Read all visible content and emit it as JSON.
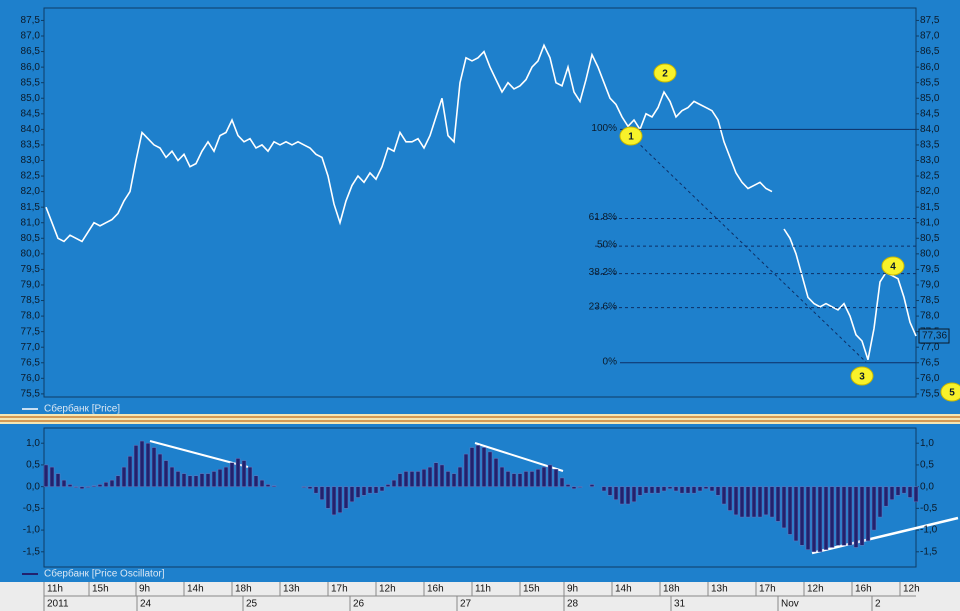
{
  "chart_data": [
    {
      "type": "line",
      "xlim": [
        0,
        436
      ],
      "x": [
        1,
        4,
        7,
        10,
        13,
        16,
        19,
        22,
        25,
        28,
        31,
        34,
        37,
        40,
        43,
        46,
        49,
        52,
        55,
        58,
        61,
        64,
        67,
        70,
        73,
        76,
        79,
        82,
        85,
        88,
        91,
        94,
        97,
        100,
        103,
        106,
        109,
        112,
        115,
        118,
        121,
        124,
        127,
        130,
        133,
        136,
        139,
        142,
        145,
        148,
        151,
        154,
        157,
        160,
        163,
        166,
        169,
        172,
        175,
        178,
        181,
        184,
        187,
        190,
        193,
        196,
        199,
        202,
        205,
        208,
        211,
        214,
        217,
        220,
        223,
        226,
        229,
        232,
        235,
        238,
        241,
        244,
        247,
        250,
        253,
        256,
        259,
        262,
        265,
        268,
        271,
        274,
        277,
        280,
        283,
        286,
        289,
        292,
        295,
        298,
        301,
        304,
        307,
        310,
        313,
        316,
        319,
        322,
        325,
        328,
        331,
        334,
        337,
        340,
        343,
        346,
        349,
        352,
        355,
        358,
        361,
        364,
        367,
        370,
        373,
        376,
        379,
        382,
        385,
        388,
        391,
        394,
        397,
        400,
        403,
        406,
        409,
        412,
        415,
        418,
        421,
        424,
        427,
        430,
        433,
        436
      ],
      "series": [
        {
          "name": "Сбербанк [Price]",
          "color": "#ffffff",
          "values": [
            81.5,
            81.0,
            80.5,
            80.4,
            80.6,
            80.5,
            80.4,
            80.7,
            81.0,
            80.9,
            81.0,
            81.1,
            81.3,
            81.7,
            82.0,
            83.0,
            83.9,
            83.7,
            83.5,
            83.4,
            83.1,
            83.3,
            83.0,
            83.2,
            82.8,
            82.9,
            83.3,
            83.6,
            83.3,
            83.8,
            83.9,
            84.3,
            83.8,
            83.6,
            83.7,
            83.4,
            83.5,
            83.3,
            83.6,
            83.5,
            83.6,
            83.5,
            83.6,
            83.5,
            83.4,
            83.2,
            83.1,
            82.5,
            81.6,
            81.0,
            81.7,
            82.2,
            82.5,
            82.3,
            82.6,
            82.4,
            82.8,
            83.4,
            83.3,
            83.9,
            83.6,
            83.6,
            83.7,
            83.4,
            83.8,
            84.4,
            85.0,
            83.8,
            83.6,
            85.5,
            86.3,
            86.2,
            86.3,
            86.5,
            86.0,
            85.6,
            85.2,
            85.5,
            85.3,
            85.4,
            85.6,
            86.0,
            86.2,
            86.7,
            86.3,
            85.5,
            85.4,
            86.0,
            85.2,
            84.9,
            85.6,
            86.4,
            86.0,
            85.5,
            85.0,
            84.8,
            84.4,
            84.1,
            84.3,
            84.0,
            84.5,
            84.4,
            84.7,
            85.2,
            84.9,
            84.4,
            84.6,
            84.7,
            84.9,
            84.8,
            84.7,
            84.6,
            84.3,
            83.6,
            83.1,
            82.6,
            82.3,
            82.1,
            82.2,
            82.3,
            82.1,
            82.0,
            null,
            80.8,
            80.5,
            80.0,
            79.3,
            78.6,
            78.4,
            78.3,
            78.4,
            78.3,
            78.2,
            78.4,
            78.0,
            77.4,
            77.2,
            76.6,
            77.6,
            79.1,
            79.4,
            79.3,
            79.2,
            78.6,
            77.8,
            77.36
          ]
        }
      ],
      "ylim": [
        75.4,
        87.9
      ],
      "yticks": [
        {
          "value": 75.5,
          "label": "75,5"
        },
        {
          "value": 76,
          "label": "76,0"
        },
        {
          "value": 76.5,
          "label": "76,5"
        },
        {
          "value": 77,
          "label": "77,0"
        },
        {
          "value": 77.5,
          "label": "77,5"
        },
        {
          "value": 78,
          "label": "78,0"
        },
        {
          "value": 78.5,
          "label": "78,5"
        },
        {
          "value": 79,
          "label": "79,0"
        },
        {
          "value": 79.5,
          "label": "79,5"
        },
        {
          "value": 80,
          "label": "80,0"
        },
        {
          "value": 80.5,
          "label": "80,5"
        },
        {
          "value": 81,
          "label": "81,0"
        },
        {
          "value": 81.5,
          "label": "81,5"
        },
        {
          "value": 82,
          "label": "82,0"
        },
        {
          "value": 82.5,
          "label": "82,5"
        },
        {
          "value": 83,
          "label": "83,0"
        },
        {
          "value": 83.5,
          "label": "83,5"
        },
        {
          "value": 84,
          "label": "84,0"
        },
        {
          "value": 84.5,
          "label": "84,5"
        },
        {
          "value": 85,
          "label": "85,0"
        },
        {
          "value": 85.5,
          "label": "85,5"
        },
        {
          "value": 86,
          "label": "86,0"
        },
        {
          "value": 86.5,
          "label": "86,5"
        },
        {
          "value": 87,
          "label": "87,0"
        },
        {
          "value": 87.5,
          "label": "87,5"
        }
      ],
      "fibonacci": {
        "from": 84.0,
        "to": 76.5,
        "levels": [
          {
            "value": 100,
            "label": "100%"
          },
          {
            "value": 61.8,
            "label": "61.8%"
          },
          {
            "value": 50,
            "label": "50%"
          },
          {
            "value": 38.2,
            "label": "38.2%"
          },
          {
            "value": 23.6,
            "label": "23.6%"
          },
          {
            "value": 0,
            "label": "0%"
          }
        ]
      },
      "last_price": {
        "value": 77.36,
        "label": "77,36"
      },
      "annotations": [
        "1",
        "2",
        "3",
        "4",
        "5"
      ]
    },
    {
      "type": "bar",
      "xlim": [
        0,
        436
      ],
      "x": [
        1,
        4,
        7,
        10,
        13,
        16,
        19,
        22,
        25,
        28,
        31,
        34,
        37,
        40,
        43,
        46,
        49,
        52,
        55,
        58,
        61,
        64,
        67,
        70,
        73,
        76,
        79,
        82,
        85,
        88,
        91,
        94,
        97,
        100,
        103,
        106,
        109,
        112,
        115,
        118,
        121,
        124,
        127,
        130,
        133,
        136,
        139,
        142,
        145,
        148,
        151,
        154,
        157,
        160,
        163,
        166,
        169,
        172,
        175,
        178,
        181,
        184,
        187,
        190,
        193,
        196,
        199,
        202,
        205,
        208,
        211,
        214,
        217,
        220,
        223,
        226,
        229,
        232,
        235,
        238,
        241,
        244,
        247,
        250,
        253,
        256,
        259,
        262,
        265,
        268,
        271,
        274,
        277,
        280,
        283,
        286,
        289,
        292,
        295,
        298,
        301,
        304,
        307,
        310,
        313,
        316,
        319,
        322,
        325,
        328,
        331,
        334,
        337,
        340,
        343,
        346,
        349,
        352,
        355,
        358,
        361,
        364,
        367,
        370,
        373,
        376,
        379,
        382,
        385,
        388,
        391,
        394,
        397,
        400,
        403,
        406,
        409,
        412,
        415,
        418,
        421,
        424,
        427,
        430,
        433,
        436
      ],
      "series": [
        {
          "name": "Сбербанк [Price Oscillator]",
          "color": "#22226e",
          "values": [
            0.5,
            0.45,
            0.3,
            0.15,
            0.05,
            -0.02,
            -0.05,
            -0.02,
            0.02,
            0.05,
            0.1,
            0.15,
            0.25,
            0.45,
            0.7,
            0.95,
            1.05,
            1.0,
            0.9,
            0.75,
            0.6,
            0.45,
            0.35,
            0.3,
            0.25,
            0.25,
            0.3,
            0.3,
            0.35,
            0.4,
            0.45,
            0.55,
            0.65,
            0.6,
            0.45,
            0.25,
            0.15,
            0.05,
            0.02,
            0.0,
            0.0,
            0.0,
            0.0,
            -0.02,
            -0.05,
            -0.15,
            -0.3,
            -0.5,
            -0.65,
            -0.6,
            -0.5,
            -0.35,
            -0.25,
            -0.2,
            -0.15,
            -0.15,
            -0.1,
            0.05,
            0.15,
            0.3,
            0.35,
            0.35,
            0.35,
            0.4,
            0.45,
            0.55,
            0.5,
            0.35,
            0.3,
            0.45,
            0.75,
            0.9,
            0.95,
            0.9,
            0.8,
            0.65,
            0.45,
            0.35,
            0.3,
            0.3,
            0.35,
            0.35,
            0.4,
            0.45,
            0.5,
            0.4,
            0.2,
            0.05,
            -0.05,
            -0.02,
            0.0,
            0.05,
            0.0,
            -0.1,
            -0.2,
            -0.3,
            -0.4,
            -0.4,
            -0.35,
            -0.2,
            -0.15,
            -0.15,
            -0.15,
            -0.1,
            -0.05,
            -0.1,
            -0.15,
            -0.15,
            -0.15,
            -0.1,
            -0.05,
            -0.1,
            -0.2,
            -0.4,
            -0.55,
            -0.65,
            -0.7,
            -0.7,
            -0.7,
            -0.7,
            -0.65,
            -0.7,
            -0.8,
            -0.95,
            -1.1,
            -1.25,
            -1.35,
            -1.45,
            -1.5,
            -1.5,
            -1.45,
            -1.4,
            -1.35,
            -1.35,
            -1.35,
            -1.4,
            -1.35,
            -1.25,
            -1.0,
            -0.7,
            -0.45,
            -0.3,
            -0.2,
            -0.15,
            -0.25,
            -0.35
          ]
        }
      ],
      "ylim": [
        -1.85,
        1.35
      ],
      "yticks": [
        {
          "value": -1.5,
          "label": "-1,5"
        },
        {
          "value": -1,
          "label": "-1,0"
        },
        {
          "value": -0.5,
          "label": "-0,5"
        },
        {
          "value": 0,
          "label": "0,0"
        },
        {
          "value": 0.5,
          "label": "0,5"
        },
        {
          "value": 1,
          "label": "1,0"
        }
      ],
      "xticks": [
        {
          "value": 1.5,
          "label": "11h"
        },
        {
          "value": 24,
          "label": "15h"
        },
        {
          "value": 47.5,
          "label": "9h"
        },
        {
          "value": 71.5,
          "label": "14h"
        },
        {
          "value": 95.5,
          "label": "18h"
        },
        {
          "value": 119.5,
          "label": "13h"
        },
        {
          "value": 143.5,
          "label": "17h"
        },
        {
          "value": 167.5,
          "label": "12h"
        },
        {
          "value": 191.5,
          "label": "16h"
        },
        {
          "value": 215.5,
          "label": "11h"
        },
        {
          "value": 239.5,
          "label": "15h"
        },
        {
          "value": 261.5,
          "label": "9h"
        },
        {
          "value": 285.5,
          "label": "14h"
        },
        {
          "value": 309.5,
          "label": "18h"
        },
        {
          "value": 333.5,
          "label": "13h"
        },
        {
          "value": 357.5,
          "label": "17h"
        },
        {
          "value": 381.5,
          "label": "12h"
        },
        {
          "value": 405.5,
          "label": "16h"
        },
        {
          "value": 429.5,
          "label": "12h"
        }
      ],
      "xticks_dates": [
        {
          "value": 0,
          "label": "2011"
        },
        {
          "value": 46.5,
          "label": "24"
        },
        {
          "value": 99.5,
          "label": "25"
        },
        {
          "value": 153,
          "label": "26"
        },
        {
          "value": 206.5,
          "label": "27"
        },
        {
          "value": 260,
          "label": "28"
        },
        {
          "value": 313.5,
          "label": "31"
        },
        {
          "value": 367,
          "label": "Nov"
        },
        {
          "value": 414,
          "label": "2"
        }
      ]
    }
  ]
}
